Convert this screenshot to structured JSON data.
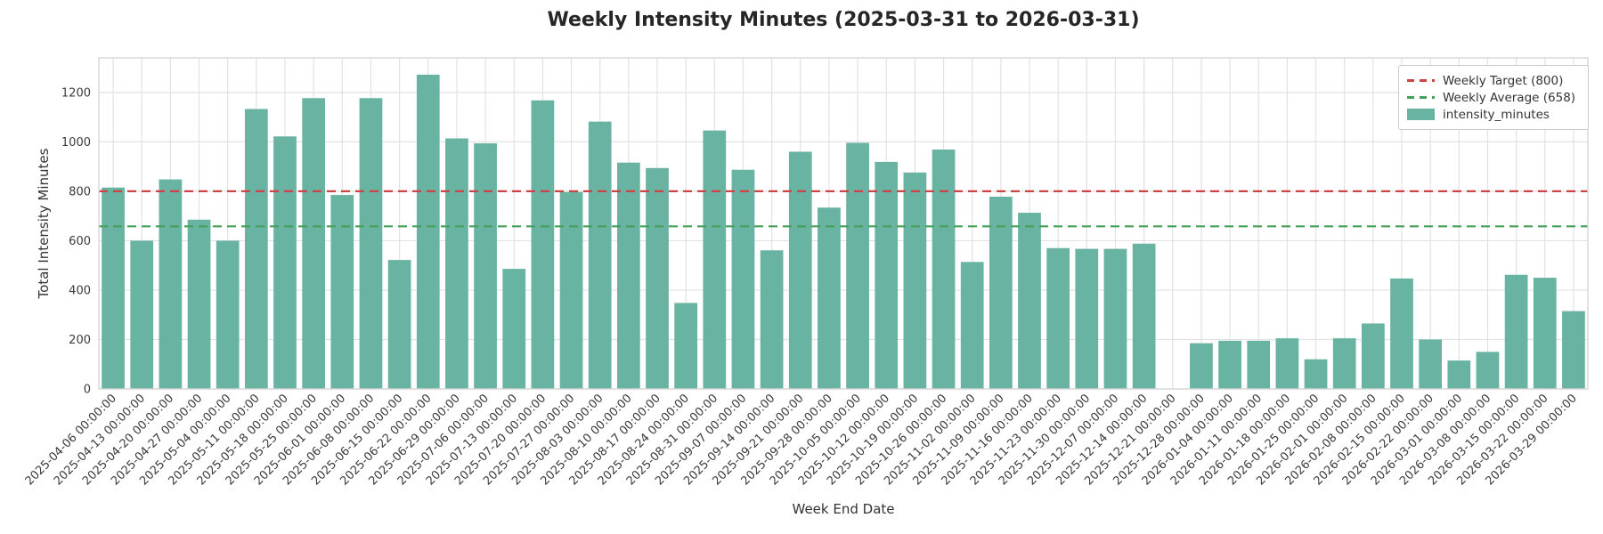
{
  "title": "Weekly Intensity Minutes (2025-03-31 to 2026-03-31)",
  "chart_data": {
    "type": "bar",
    "title": "Weekly Intensity Minutes (2025-03-31 to 2026-03-31)",
    "xlabel": "Week End Date",
    "ylabel": "Total Intensity Minutes",
    "series_name": "intensity_minutes",
    "categories": [
      "2025-04-06 00:00:00",
      "2025-04-13 00:00:00",
      "2025-04-20 00:00:00",
      "2025-04-27 00:00:00",
      "2025-05-04 00:00:00",
      "2025-05-11 00:00:00",
      "2025-05-18 00:00:00",
      "2025-05-25 00:00:00",
      "2025-06-01 00:00:00",
      "2025-06-08 00:00:00",
      "2025-06-15 00:00:00",
      "2025-06-22 00:00:00",
      "2025-06-29 00:00:00",
      "2025-07-06 00:00:00",
      "2025-07-13 00:00:00",
      "2025-07-20 00:00:00",
      "2025-07-27 00:00:00",
      "2025-08-03 00:00:00",
      "2025-08-10 00:00:00",
      "2025-08-17 00:00:00",
      "2025-08-24 00:00:00",
      "2025-08-31 00:00:00",
      "2025-09-07 00:00:00",
      "2025-09-14 00:00:00",
      "2025-09-21 00:00:00",
      "2025-09-28 00:00:00",
      "2025-10-05 00:00:00",
      "2025-10-12 00:00:00",
      "2025-10-19 00:00:00",
      "2025-10-26 00:00:00",
      "2025-11-02 00:00:00",
      "2025-11-09 00:00:00",
      "2025-11-16 00:00:00",
      "2025-11-23 00:00:00",
      "2025-11-30 00:00:00",
      "2025-12-07 00:00:00",
      "2025-12-14 00:00:00",
      "2025-12-21 00:00:00",
      "2025-12-28 00:00:00",
      "2026-01-04 00:00:00",
      "2026-01-11 00:00:00",
      "2026-01-18 00:00:00",
      "2026-01-25 00:00:00",
      "2026-02-01 00:00:00",
      "2026-02-08 00:00:00",
      "2026-02-15 00:00:00",
      "2026-02-22 00:00:00",
      "2026-03-01 00:00:00",
      "2026-03-08 00:00:00",
      "2026-03-15 00:00:00",
      "2026-03-22 00:00:00",
      "2026-03-29 00:00:00"
    ],
    "values": [
      815,
      600,
      848,
      685,
      600,
      1133,
      1022,
      1177,
      785,
      1177,
      522,
      1272,
      1014,
      994,
      486,
      1168,
      797,
      1082,
      916,
      894,
      348,
      1046,
      887,
      561,
      960,
      734,
      996,
      919,
      876,
      969,
      514,
      778,
      713,
      570,
      567,
      567,
      588,
      null,
      185,
      195,
      195,
      205,
      120,
      205,
      265,
      447,
      200,
      115,
      150,
      462,
      450,
      315
    ],
    "ylim": [
      0,
      1340
    ],
    "yticks": [
      0,
      200,
      400,
      600,
      800,
      1000,
      1200
    ],
    "grid": true,
    "bar_color": "#69b3a2",
    "reference_lines": [
      {
        "name": "weekly-target",
        "value": 800,
        "color": "#cc4444",
        "style": "dashed"
      },
      {
        "name": "weekly-average",
        "value": 658,
        "color": "#44a05a",
        "style": "dashed"
      }
    ],
    "legend": {
      "position": "upper right",
      "entries": [
        {
          "label": "Weekly Target (800)",
          "type": "dashed-line",
          "color": "#cc4444"
        },
        {
          "label": "Weekly Average (658)",
          "type": "dashed-line",
          "color": "#44a05a"
        },
        {
          "label": "intensity_minutes",
          "type": "bar",
          "color": "#69b3a2"
        }
      ]
    }
  },
  "colors": {
    "background": "#ffffff",
    "grid": "#e2e2e2",
    "spine": "#d6d6d6",
    "tick_text": "#3b3b3b",
    "text": "#333333"
  }
}
